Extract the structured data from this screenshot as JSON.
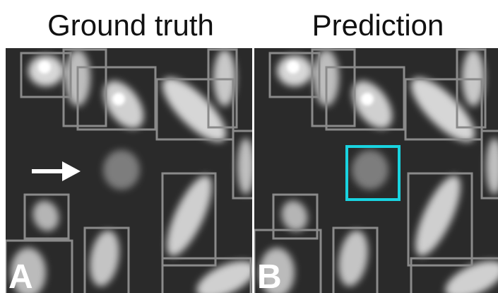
{
  "panels": [
    {
      "title": "Ground truth",
      "label": "A"
    },
    {
      "title": "Prediction",
      "label": "B"
    }
  ]
}
